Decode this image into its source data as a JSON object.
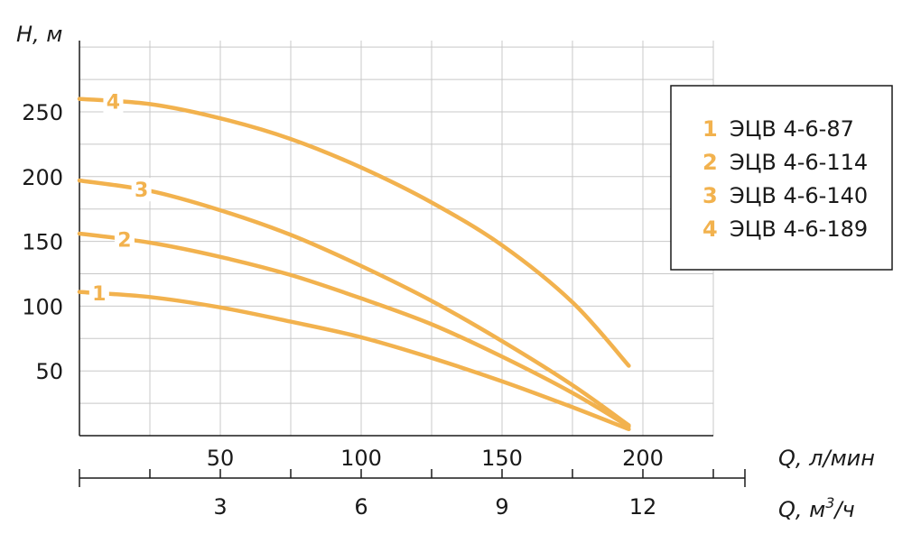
{
  "chart_data": {
    "type": "line",
    "ylabel": "H, м",
    "xlabel_primary": "Q, л/мин",
    "xlabel_secondary_base": "Q, м",
    "xlabel_secondary_sup": "3",
    "xlabel_secondary_tail": "/ч",
    "xlim": [
      0,
      225
    ],
    "ylim": [
      0,
      305
    ],
    "y_ticks": [
      50,
      100,
      150,
      200,
      250
    ],
    "x_ticks_primary": [
      50,
      100,
      150,
      200
    ],
    "x_ticks_secondary": [
      {
        "q_l_min": 50,
        "label": "3"
      },
      {
        "q_l_min": 100,
        "label": "6"
      },
      {
        "q_l_min": 150,
        "label": "9"
      },
      {
        "q_l_min": 200,
        "label": "12"
      }
    ],
    "grid": true,
    "legend_position": "right",
    "curve_color": "#f2b24e",
    "series": [
      {
        "id": "1",
        "name": "ЭЦВ 4-6-87",
        "x": [
          0,
          25,
          50,
          75,
          100,
          125,
          150,
          175,
          195
        ],
        "y": [
          111,
          107,
          99,
          88,
          76,
          60,
          42,
          22,
          5
        ]
      },
      {
        "id": "2",
        "name": "ЭЦВ 4-6-114",
        "x": [
          0,
          25,
          50,
          75,
          100,
          125,
          150,
          175,
          195
        ],
        "y": [
          156,
          149,
          138,
          124,
          106,
          86,
          61,
          33,
          7
        ]
      },
      {
        "id": "3",
        "name": "ЭЦВ 4-6-140",
        "x": [
          0,
          25,
          50,
          75,
          100,
          125,
          150,
          175,
          195
        ],
        "y": [
          197,
          189,
          174,
          155,
          131,
          104,
          73,
          39,
          8
        ]
      },
      {
        "id": "4",
        "name": "ЭЦВ 4-6-189",
        "x": [
          0,
          25,
          50,
          75,
          100,
          125,
          150,
          175,
          195
        ],
        "y": [
          260,
          256,
          245,
          229,
          207,
          180,
          147,
          103,
          54
        ]
      }
    ]
  }
}
